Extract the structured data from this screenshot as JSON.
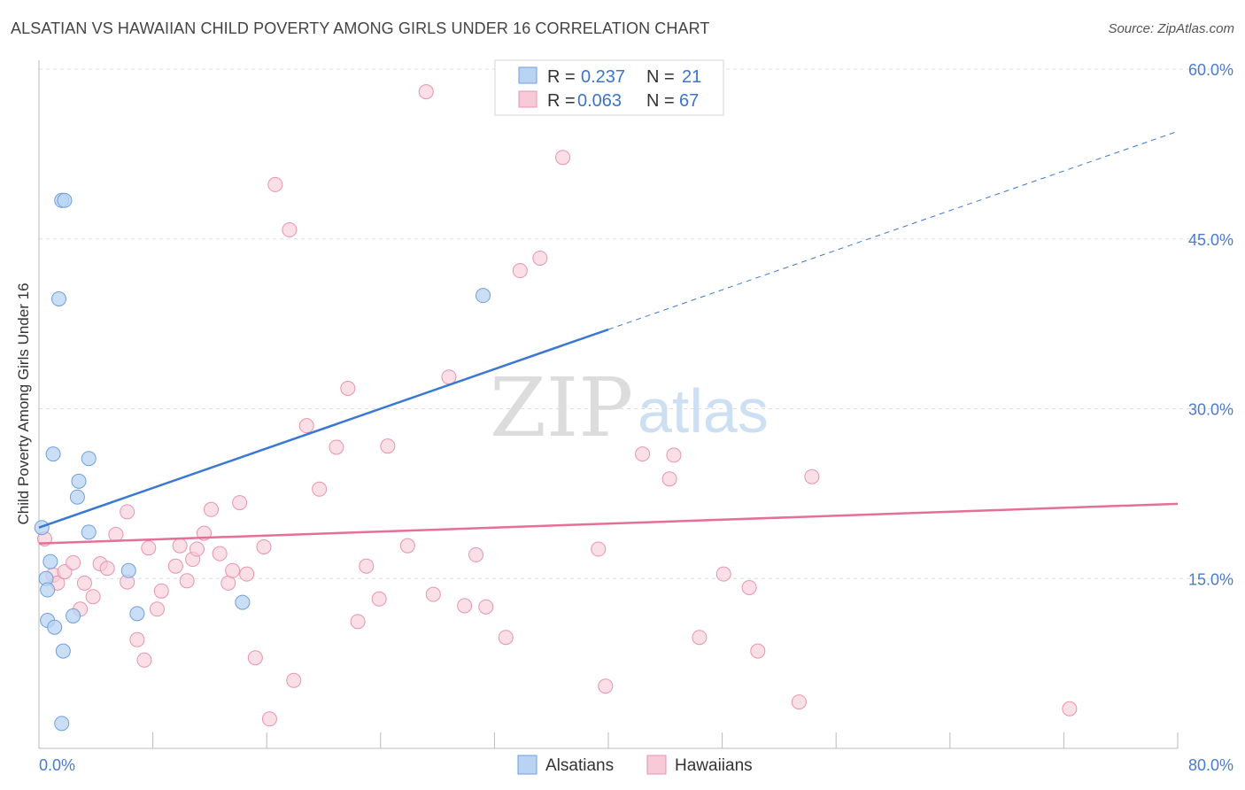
{
  "title": "ALSATIAN VS HAWAIIAN CHILD POVERTY AMONG GIRLS UNDER 16 CORRELATION CHART",
  "source": "Source: ZipAtlas.com",
  "watermark": {
    "zip": "ZIP",
    "atlas": "atlas"
  },
  "legend": {
    "rows": [
      {
        "r_label": "R = ",
        "r_value": "0.237",
        "n_label": "N = ",
        "n_value": "21"
      },
      {
        "r_label": "R = ",
        "r_value": "0.063",
        "n_label": "N = ",
        "n_value": "67"
      }
    ]
  },
  "colors": {
    "alsatian_fill": "#b8d3f3",
    "alsatian_stroke": "#6f9fdc",
    "alsatian_line": "#3a78d4",
    "hawaiian_fill": "#f8c9d6",
    "hawaiian_stroke": "#e993b0",
    "hawaiian_line": "#e66f98",
    "axis_label": "#4a7bd0",
    "grid": "#dddddd"
  },
  "chart_data": {
    "type": "scatter",
    "title": "ALSATIAN VS HAWAIIAN CHILD POVERTY AMONG GIRLS UNDER 16 CORRELATION CHART",
    "xlabel": "",
    "ylabel": "Child Poverty Among Girls Under 16",
    "xlim": [
      0,
      80
    ],
    "ylim": [
      0,
      60
    ],
    "x_tick_labels": [
      "0.0%",
      "80.0%"
    ],
    "y_ticks": [
      15,
      30,
      45,
      60
    ],
    "y_tick_labels": [
      "15.0%",
      "30.0%",
      "45.0%",
      "60.0%"
    ],
    "grid": "horizontal dashed",
    "legend_position": "top-center",
    "series": [
      {
        "name": "Alsatians",
        "r": 0.237,
        "n": 21,
        "trend": {
          "x0": 0,
          "y0": 19.5,
          "x1": 40,
          "y1": 37.0,
          "dashed_to_x": 80,
          "dashed_to_y": 54.5
        },
        "points": [
          [
            0.2,
            19.5
          ],
          [
            0.5,
            15.0
          ],
          [
            0.8,
            16.5
          ],
          [
            0.6,
            14.0
          ],
          [
            0.6,
            11.3
          ],
          [
            1.0,
            26.0
          ],
          [
            1.1,
            10.7
          ],
          [
            1.4,
            39.7
          ],
          [
            1.6,
            48.4
          ],
          [
            1.8,
            48.4
          ],
          [
            1.7,
            8.6
          ],
          [
            1.6,
            2.2
          ],
          [
            2.4,
            11.7
          ],
          [
            2.7,
            22.2
          ],
          [
            2.8,
            23.6
          ],
          [
            3.5,
            25.6
          ],
          [
            3.5,
            19.1
          ],
          [
            6.3,
            15.7
          ],
          [
            6.9,
            11.9
          ],
          [
            14.3,
            12.9
          ],
          [
            31.2,
            40.0
          ]
        ]
      },
      {
        "name": "Hawaiians",
        "r": 0.063,
        "n": 67,
        "trend": {
          "x0": 0,
          "y0": 18.1,
          "x1": 80,
          "y1": 21.6
        },
        "points": [
          [
            0.4,
            18.5
          ],
          [
            1.0,
            15.3
          ],
          [
            1.3,
            14.6
          ],
          [
            1.8,
            15.6
          ],
          [
            2.4,
            16.4
          ],
          [
            2.9,
            12.3
          ],
          [
            3.2,
            14.6
          ],
          [
            3.8,
            13.4
          ],
          [
            4.3,
            16.3
          ],
          [
            4.8,
            15.9
          ],
          [
            5.4,
            18.9
          ],
          [
            6.2,
            20.9
          ],
          [
            6.2,
            14.7
          ],
          [
            6.9,
            9.6
          ],
          [
            7.4,
            7.8
          ],
          [
            7.7,
            17.7
          ],
          [
            8.3,
            12.3
          ],
          [
            8.6,
            13.9
          ],
          [
            9.6,
            16.1
          ],
          [
            9.9,
            17.9
          ],
          [
            10.4,
            14.8
          ],
          [
            10.8,
            16.7
          ],
          [
            11.1,
            17.6
          ],
          [
            11.6,
            19.0
          ],
          [
            12.1,
            21.1
          ],
          [
            12.7,
            17.2
          ],
          [
            13.3,
            14.6
          ],
          [
            13.6,
            15.7
          ],
          [
            14.1,
            21.7
          ],
          [
            14.6,
            15.4
          ],
          [
            15.2,
            8.0
          ],
          [
            15.8,
            17.8
          ],
          [
            16.2,
            2.6
          ],
          [
            16.6,
            49.8
          ],
          [
            17.6,
            45.8
          ],
          [
            17.9,
            6.0
          ],
          [
            18.8,
            28.5
          ],
          [
            19.7,
            22.9
          ],
          [
            20.9,
            26.6
          ],
          [
            21.7,
            31.8
          ],
          [
            22.4,
            11.2
          ],
          [
            23.0,
            16.1
          ],
          [
            23.9,
            13.2
          ],
          [
            24.5,
            26.7
          ],
          [
            25.9,
            17.9
          ],
          [
            27.2,
            58.0
          ],
          [
            27.7,
            13.6
          ],
          [
            28.8,
            32.8
          ],
          [
            29.9,
            12.6
          ],
          [
            30.7,
            17.1
          ],
          [
            31.4,
            12.5
          ],
          [
            32.8,
            9.8
          ],
          [
            33.8,
            42.2
          ],
          [
            35.2,
            43.3
          ],
          [
            36.8,
            52.2
          ],
          [
            39.3,
            17.6
          ],
          [
            39.8,
            5.5
          ],
          [
            42.4,
            26.0
          ],
          [
            44.3,
            23.8
          ],
          [
            44.6,
            25.9
          ],
          [
            46.4,
            9.8
          ],
          [
            48.1,
            15.4
          ],
          [
            49.9,
            14.2
          ],
          [
            50.5,
            8.6
          ],
          [
            53.4,
            4.1
          ],
          [
            54.3,
            24.0
          ],
          [
            72.4,
            3.5
          ]
        ]
      }
    ]
  }
}
